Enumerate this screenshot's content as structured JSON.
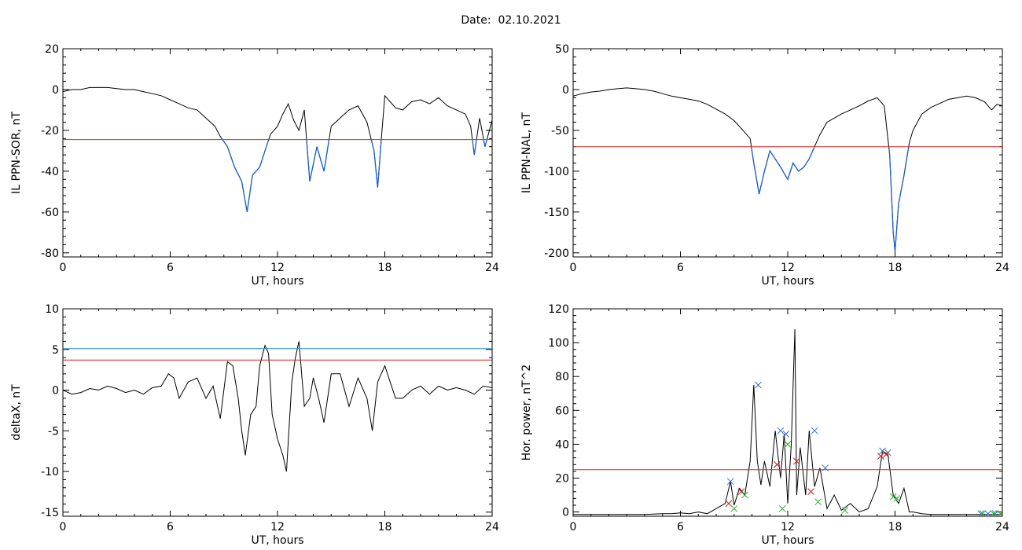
{
  "header": {
    "date_label": "Date:",
    "date_value": "02.10.2021"
  },
  "colors": {
    "axis": "#000000",
    "trace": "#000000",
    "highlight": "#1a5fd0",
    "threshold_red": "#e02020",
    "threshold_blue": "#2a8fd0",
    "marker_blue": "#2f6fe0",
    "marker_red": "#d02020",
    "marker_green": "#20b020"
  },
  "chart_data": [
    {
      "type": "line",
      "xlabel": "UT, hours",
      "ylabel": "IL PPN-SOR, nT",
      "xlim": [
        0,
        24
      ],
      "ylim": [
        -82,
        20
      ],
      "xticks": [
        0,
        6,
        12,
        18,
        24
      ],
      "yticks": [
        -80,
        -60,
        -40,
        -20,
        0,
        20
      ],
      "threshold": {
        "value": -24.5,
        "color": "red"
      },
      "highlight_below_threshold": true,
      "series": [
        {
          "x": [
            0,
            0.5,
            1,
            1.5,
            2,
            2.5,
            3,
            3.5,
            4,
            4.5,
            5,
            5.5,
            6,
            6.5,
            7,
            7.5,
            8,
            8.5,
            8.8,
            9.2,
            9.6,
            10,
            10.3,
            10.6,
            11,
            11.3,
            11.6,
            12,
            12.3,
            12.6,
            12.9,
            13.2,
            13.5,
            13.8,
            14.2,
            14.6,
            15,
            15.5,
            16,
            16.5,
            17,
            17.4,
            17.6,
            17.8,
            18,
            18.3,
            18.6,
            19,
            19.5,
            20,
            20.5,
            21,
            21.5,
            22,
            22.5,
            22.8,
            23,
            23.3,
            23.6,
            24
          ],
          "values": [
            -1,
            0,
            0,
            1,
            1,
            1,
            0.5,
            0,
            0,
            -1,
            -2,
            -3,
            -5,
            -7,
            -9,
            -10,
            -14,
            -18,
            -23,
            -28,
            -38,
            -45,
            -60,
            -42,
            -38,
            -30,
            -22,
            -18,
            -12,
            -7,
            -15,
            -20,
            -10,
            -45,
            -28,
            -40,
            -18,
            -14,
            -10,
            -8,
            -16,
            -30,
            -48,
            -25,
            -3,
            -6,
            -9,
            -10,
            -6,
            -5,
            -7,
            -4,
            -8,
            -10,
            -12,
            -18,
            -32,
            -14,
            -28,
            -15
          ]
        }
      ]
    },
    {
      "type": "line",
      "xlabel": "UT, hours",
      "ylabel": "IL PPN-NAL, nT",
      "xlim": [
        0,
        24
      ],
      "ylim": [
        -205,
        50
      ],
      "xticks": [
        0,
        6,
        12,
        18,
        24
      ],
      "yticks": [
        -200,
        -150,
        -100,
        -50,
        0,
        50
      ],
      "threshold": {
        "value": -70,
        "color": "red"
      },
      "highlight_below_threshold": true,
      "series": [
        {
          "x": [
            0,
            0.5,
            1,
            1.5,
            2,
            2.5,
            3,
            3.5,
            4,
            4.5,
            5,
            5.5,
            6,
            6.5,
            7,
            7.5,
            8,
            8.5,
            9,
            9.5,
            9.9,
            10.1,
            10.4,
            10.7,
            11,
            11.3,
            11.6,
            12,
            12.3,
            12.6,
            12.9,
            13.2,
            13.5,
            13.8,
            14.2,
            14.6,
            15,
            15.5,
            16,
            16.5,
            17,
            17.4,
            17.7,
            17.9,
            18,
            18.2,
            18.5,
            18.8,
            19,
            19.5,
            20,
            20.5,
            21,
            21.5,
            22,
            22.5,
            23,
            23.4,
            23.7,
            24
          ],
          "values": [
            -8,
            -5,
            -3,
            -2,
            0,
            1,
            2,
            1,
            0,
            -2,
            -5,
            -8,
            -10,
            -12,
            -14,
            -18,
            -24,
            -30,
            -38,
            -50,
            -60,
            -90,
            -128,
            -100,
            -75,
            -85,
            -95,
            -110,
            -90,
            -100,
            -95,
            -85,
            -70,
            -55,
            -40,
            -35,
            -30,
            -25,
            -20,
            -14,
            -10,
            -20,
            -80,
            -175,
            -198,
            -140,
            -105,
            -65,
            -50,
            -30,
            -22,
            -17,
            -12,
            -10,
            -8,
            -10,
            -15,
            -25,
            -18,
            -20
          ]
        }
      ]
    },
    {
      "type": "line",
      "xlabel": "UT, hours",
      "ylabel": "deltaX, nT",
      "xlim": [
        0,
        24
      ],
      "ylim": [
        -15.5,
        10
      ],
      "xticks": [
        0,
        6,
        12,
        18,
        24
      ],
      "yticks": [
        -15,
        -10,
        -5,
        0,
        5,
        10
      ],
      "thresholds": [
        {
          "value": 5.1,
          "color": "blue"
        },
        {
          "value": 3.7,
          "color": "red"
        }
      ],
      "series": [
        {
          "x": [
            0,
            0.5,
            1,
            1.5,
            2,
            2.5,
            3,
            3.5,
            4,
            4.5,
            5,
            5.5,
            5.9,
            6.2,
            6.5,
            7,
            7.5,
            8,
            8.4,
            8.8,
            9.2,
            9.5,
            9.8,
            10,
            10.2,
            10.5,
            10.8,
            11,
            11.3,
            11.5,
            11.7,
            12,
            12.3,
            12.5,
            12.8,
            13,
            13.2,
            13.5,
            13.8,
            14,
            14.3,
            14.6,
            15,
            15.5,
            16,
            16.5,
            17,
            17.3,
            17.6,
            18,
            18.3,
            18.6,
            19,
            19.5,
            20,
            20.5,
            21,
            21.5,
            22,
            22.5,
            23,
            23.5,
            24
          ],
          "values": [
            0,
            -0.5,
            -0.3,
            0.2,
            0,
            0.5,
            0.2,
            -0.3,
            0,
            -0.5,
            0.3,
            0.5,
            2,
            1.5,
            -1,
            1,
            1.5,
            -1,
            0.5,
            -3.5,
            3.5,
            3,
            -1,
            -5,
            -8,
            -3,
            -2,
            3,
            5.5,
            4.5,
            -3,
            -6,
            -8,
            -10,
            1,
            4,
            6,
            -2,
            -1,
            1.5,
            -1,
            -4,
            2,
            2,
            -2,
            1.5,
            -1,
            -5,
            1,
            3,
            1,
            -1,
            -1,
            0,
            0.5,
            -0.5,
            0.5,
            0,
            0.3,
            0,
            -0.5,
            0.5,
            0.3
          ]
        }
      ]
    },
    {
      "type": "line",
      "xlabel": "UT, hours",
      "ylabel": "Hor. power, nT^2",
      "xlim": [
        0,
        24
      ],
      "ylim": [
        -2.5,
        120
      ],
      "xticks": [
        0,
        6,
        12,
        18,
        24
      ],
      "yticks": [
        0,
        20,
        40,
        60,
        80,
        100,
        120
      ],
      "threshold": {
        "value": 25,
        "color": "red"
      },
      "series": [
        {
          "x": [
            0,
            1,
            2,
            3,
            4,
            5,
            5.5,
            6,
            6.5,
            7,
            7.5,
            8,
            8.5,
            8.8,
            9,
            9.3,
            9.6,
            9.9,
            10.1,
            10.3,
            10.5,
            10.7,
            11,
            11.3,
            11.6,
            11.8,
            12,
            12.2,
            12.4,
            12.5,
            12.7,
            13,
            13.2,
            13.5,
            13.8,
            14.2,
            14.6,
            15,
            15.5,
            16,
            16.5,
            17,
            17.3,
            17.6,
            17.9,
            18.2,
            18.5,
            18.8,
            19,
            19.5,
            20,
            21,
            22,
            23,
            24
          ],
          "values": [
            -1.5,
            -1.5,
            -1.5,
            -1.5,
            -1.5,
            -1,
            -1,
            -0.5,
            -1,
            0,
            -1,
            2,
            5,
            18,
            4,
            14,
            10,
            30,
            75,
            30,
            16,
            30,
            15,
            48,
            20,
            46,
            5,
            40,
            108,
            10,
            38,
            10,
            48,
            15,
            26,
            2,
            10,
            1,
            5,
            0,
            2,
            15,
            36,
            34,
            10,
            5,
            14,
            0,
            0,
            -1,
            -1.5,
            -1.5,
            -1.5,
            -1.5,
            -1.5
          ]
        }
      ],
      "markers": [
        {
          "color": "blue",
          "symbol": "x",
          "x": [
            8.8,
            10.35,
            11.6,
            11.9,
            13.5,
            14.1,
            17.3,
            17.6,
            22.8,
            23.2,
            23.6
          ],
          "y": [
            18,
            75,
            48,
            46,
            48,
            26,
            36,
            35,
            -1,
            -1,
            -1
          ]
        },
        {
          "color": "red",
          "symbol": "x",
          "x": [
            8.7,
            9.4,
            11.4,
            12.5,
            13.3,
            17.2,
            17.5
          ],
          "y": [
            5,
            12,
            28,
            30,
            12,
            33,
            34
          ]
        },
        {
          "color": "green",
          "symbol": "x",
          "x": [
            9.0,
            9.6,
            11.7,
            12.0,
            13.7,
            15.2,
            17.9,
            18.1,
            22.9,
            23.5,
            23.9
          ],
          "y": [
            2,
            10,
            2,
            40,
            6,
            1,
            9,
            8,
            -1,
            -1,
            -1
          ]
        }
      ]
    }
  ]
}
